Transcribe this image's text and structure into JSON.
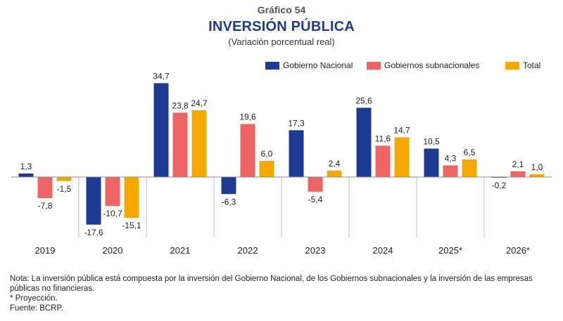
{
  "header": {
    "label": "Gráfico 54",
    "title": "INVERSIÓN PÚBLICA",
    "subtitle": "(Variación porcentual real)"
  },
  "chart_data": {
    "type": "bar",
    "title": "INVERSIÓN PÚBLICA",
    "subtitle": "(Variación porcentual real)",
    "categories": [
      "2019",
      "2020",
      "2021",
      "2022",
      "2023",
      "2024",
      "2025*",
      "2026*"
    ],
    "series": [
      {
        "name": "Gobierno Nacional",
        "color": "#1f3a93",
        "values": [
          1.3,
          -17.6,
          34.7,
          -6.3,
          17.3,
          25.6,
          10.5,
          -0.2
        ],
        "labels": [
          "1,3",
          "-17,6",
          "34,7",
          "-6,3",
          "17,3",
          "25,6",
          "10,5",
          "-0,2"
        ]
      },
      {
        "name": "Gobiernos subnacionales",
        "color": "#ec6464",
        "values": [
          -7.8,
          -10.7,
          23.8,
          19.6,
          -5.4,
          11.6,
          4.3,
          2.1
        ],
        "labels": [
          "-7,8",
          "-10,7",
          "23,8",
          "19,6",
          "-5,4",
          "11,6",
          "4,3",
          "2,1"
        ]
      },
      {
        "name": "Total",
        "color": "#f5a800",
        "values": [
          -1.5,
          -15.1,
          24.7,
          6.0,
          2.4,
          14.7,
          6.5,
          1.0
        ],
        "labels": [
          "-1,5",
          "-15,1",
          "24,7",
          "6,0",
          "2,4",
          "14,7",
          "6,5",
          "1,0"
        ]
      }
    ],
    "xlabel": "",
    "ylabel": "",
    "ylim": [
      -20,
      36
    ],
    "grid": false,
    "legend_position": "top-right",
    "separators": true
  },
  "notes": {
    "nota": "Nota: La inversión pública está compuesta por la inversión del Gobierno Nacional, de los Gobiernos subnacionales y la inversión de las empresas públicas no financieras.",
    "proyeccion": "* Proyección.",
    "fuente": "Fuente: BCRP."
  }
}
